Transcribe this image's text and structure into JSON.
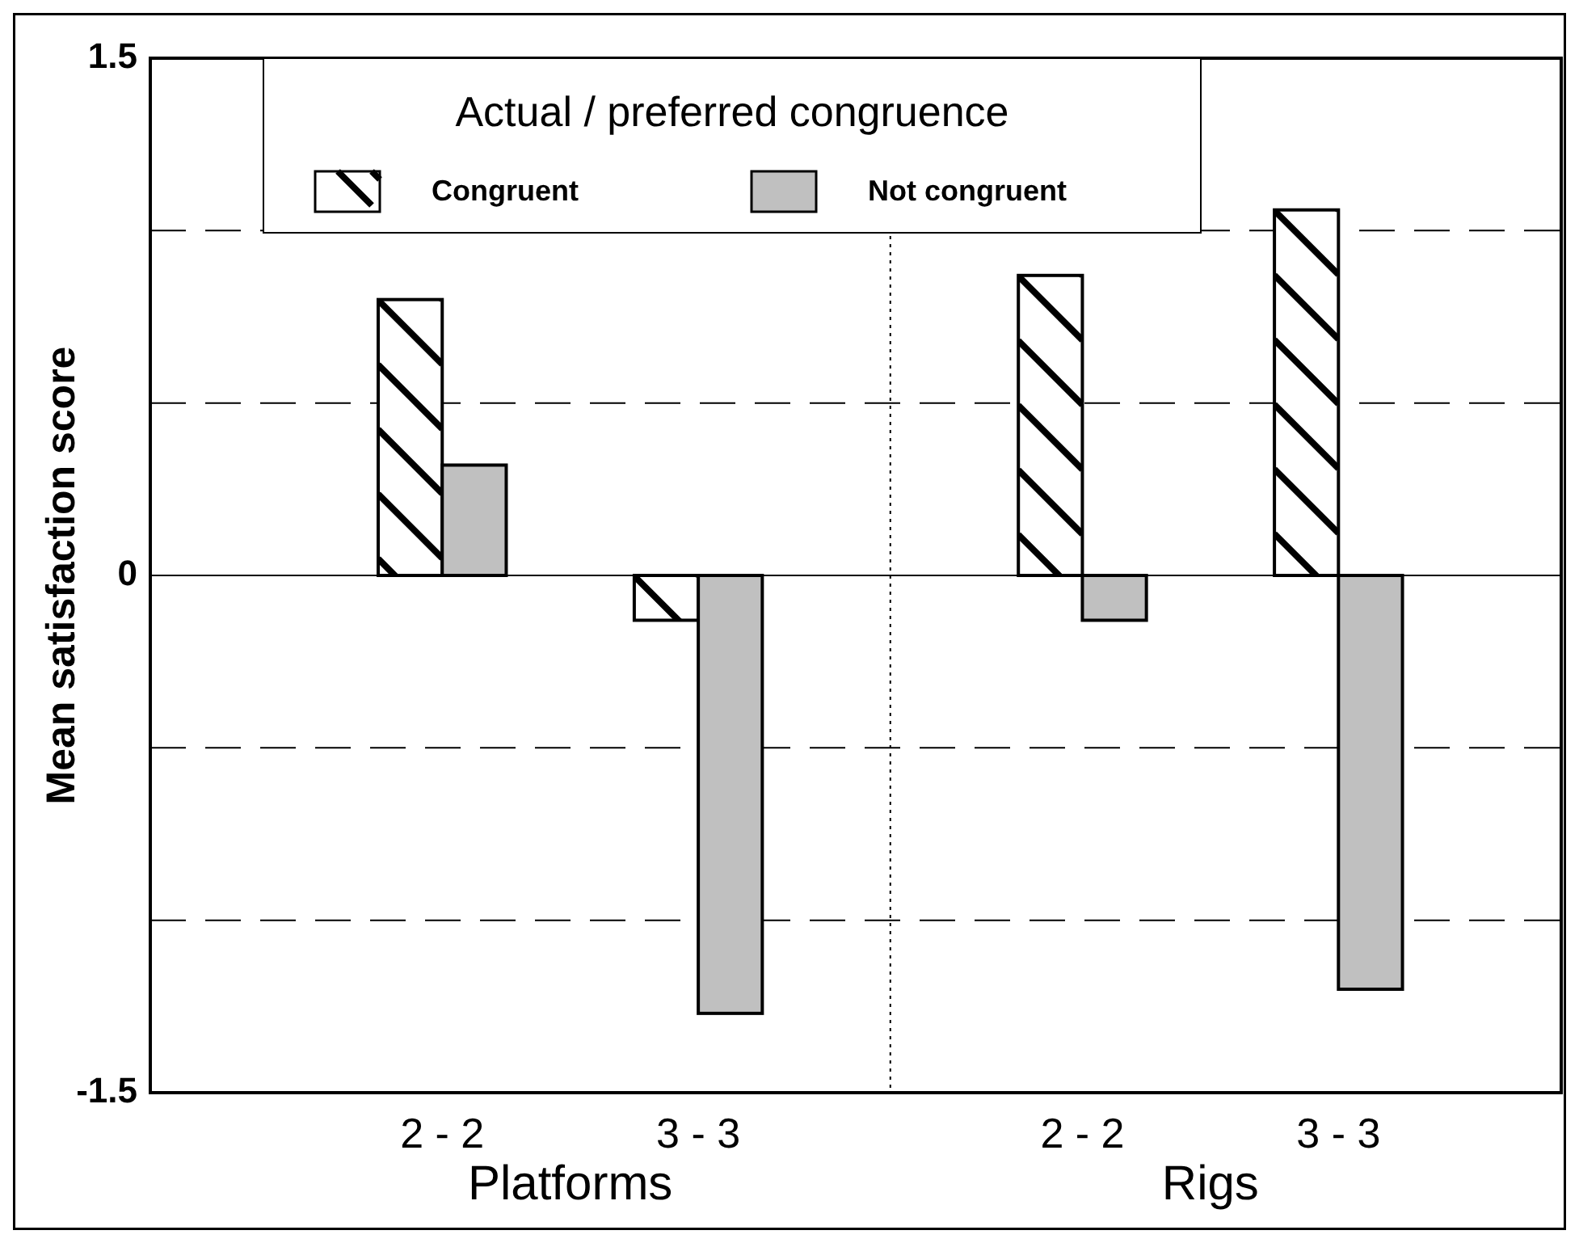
{
  "chart_data": {
    "type": "bar",
    "ylabel": "Mean satisfaction score",
    "legend_title": "Actual / preferred congruence",
    "categories": [
      "2 - 2",
      "3 - 3",
      "2 - 2",
      "3 - 3"
    ],
    "series": [
      {
        "name": "Congruent",
        "color": "#ffffff",
        "values": [
          0.8,
          -0.13,
          0.87,
          1.06
        ]
      },
      {
        "name": "Not congruent",
        "color": "#c0c0c0",
        "values": [
          0.32,
          -1.27,
          -0.13,
          -1.2
        ]
      }
    ],
    "ylim": [
      -1.5,
      1.5
    ],
    "yticks": [
      -1.5,
      {
        "value": -1,
        "label": null
      },
      {
        "value": -0.5,
        "label": null
      },
      0,
      {
        "value": 0.5,
        "label": null
      },
      {
        "value": 1,
        "label": null
      },
      1.5
    ],
    "grid": "y",
    "legend": "top left",
    "annotations": [
      "Platforms",
      "Rigs"
    ]
  }
}
